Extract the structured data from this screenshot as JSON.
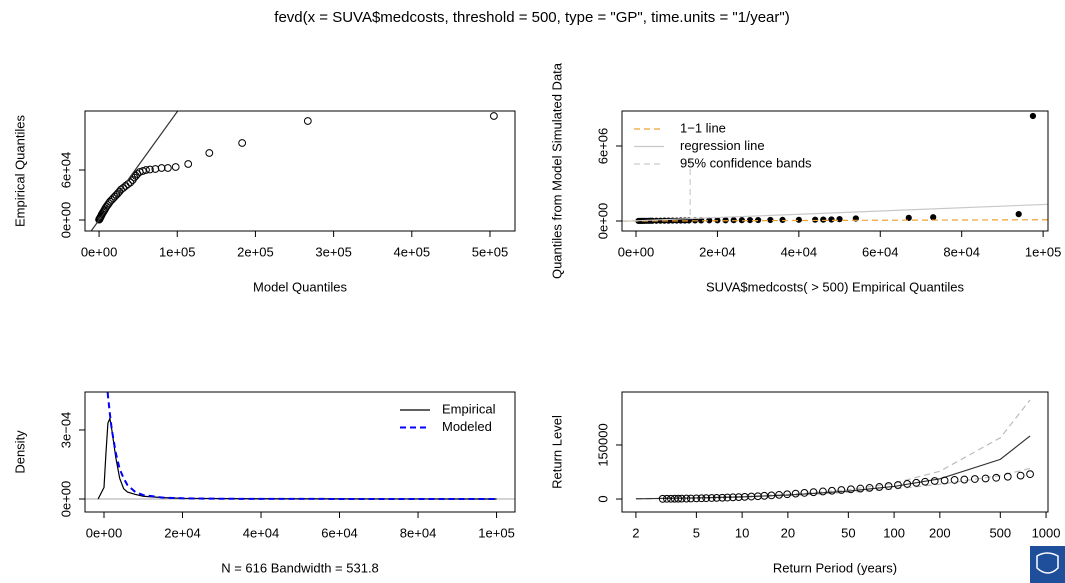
{
  "title": "fevd(x = SUVA$medcosts, threshold = 500, type = \"GP\", time.units = \"1/year\")",
  "chart_data": [
    {
      "type": "scatter",
      "xlabel": "Model Quantiles",
      "ylabel": "Empirical Quantiles",
      "xlim": [
        -18000,
        532000
      ],
      "ylim": [
        -13200,
        130800
      ],
      "xticks": [
        {
          "value": 0,
          "label": "0e+00"
        },
        {
          "value": 100000,
          "label": "1e+05"
        },
        {
          "value": 200000,
          "label": "2e+05"
        },
        {
          "value": 300000,
          "label": "3e+05"
        },
        {
          "value": 400000,
          "label": "4e+05"
        },
        {
          "value": 500000,
          "label": "5e+05"
        }
      ],
      "yticks": [
        {
          "value": 0,
          "label": "0e+00"
        },
        {
          "value": 60000,
          "label": "6e+04"
        }
      ],
      "series": [
        {
          "kind": "points",
          "marker": "open",
          "color": "#000000",
          "x": [
            505000,
            267000,
            183000,
            141000,
            114000,
            98000,
            88000,
            80000,
            72000,
            65000,
            60000,
            56000,
            52000,
            49000,
            47000,
            45000,
            43000,
            40000,
            37000,
            34000,
            31000,
            28000,
            26000,
            24000,
            22000,
            20000,
            18000,
            16000,
            14000,
            12500,
            11000,
            9500,
            8000,
            7000,
            6000,
            5000,
            4000,
            3200,
            2500,
            1800,
            1200,
            700,
            300,
            0
          ],
          "y": [
            124800,
            118800,
            92400,
            80400,
            67200,
            63600,
            62400,
            62400,
            61200,
            60600,
            60000,
            58800,
            57600,
            55200,
            53000,
            51000,
            48000,
            45000,
            43000,
            41000,
            38500,
            36500,
            34000,
            32000,
            30000,
            28000,
            26000,
            24000,
            22000,
            20000,
            18000,
            16000,
            14000,
            12000,
            10500,
            9000,
            7500,
            6000,
            4500,
            3300,
            2200,
            1300,
            700,
            500
          ]
        },
        {
          "kind": "abline",
          "color": "#333333",
          "intercept": 0,
          "slope": 1.3
        }
      ]
    },
    {
      "type": "scatter",
      "xlabel": "SUVA$medcosts( > 500) Empirical Quantiles",
      "ylabel": "Quantiles from Model Simulated Data",
      "xlim": [
        -3440,
        101200
      ],
      "ylim": [
        -800000,
        8800000
      ],
      "legend": "topleft",
      "xticks": [
        {
          "value": 0,
          "label": "0e+00"
        },
        {
          "value": 20000,
          "label": "2e+04"
        },
        {
          "value": 40000,
          "label": "4e+04"
        },
        {
          "value": 60000,
          "label": "6e+04"
        },
        {
          "value": 80000,
          "label": "8e+04"
        },
        {
          "value": 100000,
          "label": "1e+05"
        }
      ],
      "yticks": [
        {
          "value": 0,
          "label": "0e+00"
        },
        {
          "value": 6000000,
          "label": "6e+06"
        }
      ],
      "series": [
        {
          "kind": "points",
          "marker": "filled",
          "color": "#000000",
          "x": [
            600,
            1000,
            1500,
            2000,
            2500,
            3000,
            3500,
            4000,
            5000,
            6000,
            7000,
            8000,
            9000,
            10000,
            11000,
            12000,
            13000,
            14500,
            16000,
            18000,
            20000,
            22000,
            24000,
            26000,
            28000,
            30000,
            33000,
            36000,
            40000,
            44000,
            46000,
            48000,
            50000,
            54000,
            67000,
            73000,
            94000,
            97500
          ],
          "y": [
            5000,
            8000,
            10000,
            12000,
            14000,
            16000,
            18000,
            20000,
            22000,
            25000,
            28000,
            30000,
            33000,
            36000,
            38000,
            40000,
            42000,
            45000,
            48000,
            52000,
            56000,
            60000,
            64000,
            68000,
            72000,
            76000,
            82000,
            88000,
            95000,
            105000,
            110000,
            120000,
            150000,
            200000,
            250000,
            300000,
            550000,
            8400000
          ]
        },
        {
          "kind": "abline",
          "name": "1−1 line",
          "color": "#f0a030",
          "dash": "dashed",
          "intercept": 0,
          "slope": 1
        },
        {
          "kind": "abline",
          "name": "regression line",
          "color": "#c8c8c8",
          "intercept": 20000,
          "slope": 13
        },
        {
          "kind": "line",
          "name": "95% confidence bands",
          "color": "#cccccc",
          "dash": "dashed",
          "x": [
            13300,
            13300
          ],
          "y": [
            480000,
            4880000
          ]
        }
      ]
    },
    {
      "type": "line",
      "xlabel": "N = 616   Bandwidth = 531.8",
      "ylabel": "Density",
      "xlim": [
        -4840,
        104700
      ],
      "ylim": [
        -5.65e-05,
        0.000465
      ],
      "legend": "topright",
      "xticks": [
        {
          "value": 0,
          "label": "0e+00"
        },
        {
          "value": 20000,
          "label": "2e+04"
        },
        {
          "value": 40000,
          "label": "4e+04"
        },
        {
          "value": 60000,
          "label": "6e+04"
        },
        {
          "value": 80000,
          "label": "8e+04"
        },
        {
          "value": 100000,
          "label": "1e+05"
        }
      ],
      "yticks": [
        {
          "value": 0,
          "label": "0e+00"
        },
        {
          "value": 0.0003,
          "label": "3e−04"
        }
      ],
      "series": [
        {
          "kind": "abline",
          "color": "#bbbbbb",
          "intercept": 0,
          "slope": 0
        },
        {
          "kind": "line",
          "name": "Empirical",
          "color": "#000000",
          "x": [
            -1500,
            0,
            500,
            1000,
            1500,
            2000,
            3000,
            4000,
            5000,
            6000,
            8000,
            10000,
            15000,
            20000,
            30000,
            40000,
            60000,
            80000,
            100000
          ],
          "y": [
            0,
            5e-05,
            0.0002,
            0.00033,
            0.00035,
            0.0003,
            0.00018,
            9e-05,
            4.5e-05,
            3e-05,
            2e-05,
            1.2e-05,
            6e-06,
            3e-06,
            2e-06,
            1e-06,
            5e-07,
            2e-07,
            1e-07
          ]
        },
        {
          "kind": "line",
          "name": "Modeled",
          "color": "#0000ff",
          "dash": "dashed",
          "x": [
            -1500,
            0,
            500,
            1000,
            1500,
            2000,
            3000,
            4000,
            5000,
            6000,
            8000,
            10000,
            15000,
            20000,
            30000,
            40000,
            60000,
            80000,
            100000
          ],
          "y": [
            null,
            null,
            0.00055,
            0.00045,
            0.00037,
            0.0003,
            0.0002,
            0.00013,
            9e-05,
            6e-05,
            3e-05,
            1.7e-05,
            6e-06,
            3e-06,
            1e-06,
            5e-07,
            2e-07,
            1e-07,
            5e-08
          ]
        }
      ]
    },
    {
      "type": "line",
      "xlabel": "Return Period (years)",
      "ylabel": "Return Level",
      "xlog": true,
      "xlim": [
        1.62,
        1030
      ],
      "ylim": [
        -36000,
        297000
      ],
      "xticks": [
        2,
        5,
        10,
        20,
        50,
        100,
        200,
        500,
        1000
      ],
      "yticks": [
        0,
        150000
      ],
      "series": [
        {
          "kind": "line",
          "color": "#bbbbbb",
          "dash": "dashed",
          "x": [
            2,
            5,
            10,
            20,
            50,
            100,
            200,
            500,
            785
          ],
          "y": [
            700,
            3300,
            6800,
            13000,
            26000,
            44000,
            77000,
            170000,
            275000
          ]
        },
        {
          "kind": "line",
          "color": "#bbbbbb",
          "dash": "dashed",
          "x": [
            2,
            5,
            10,
            20,
            50,
            100,
            200,
            500,
            785
          ],
          "y": [
            500,
            2700,
            5300,
            9500,
            18500,
            28000,
            41000,
            65000,
            85000
          ]
        },
        {
          "kind": "line",
          "color": "#333333",
          "x": [
            2,
            5,
            10,
            20,
            50,
            100,
            200,
            500,
            785
          ],
          "y": [
            600,
            3000,
            6000,
            11000,
            22000,
            35000,
            56000,
            110000,
            175000
          ]
        },
        {
          "kind": "points",
          "marker": "open",
          "color": "#000000",
          "x": [
            3,
            3.2,
            3.4,
            3.6,
            3.8,
            4,
            4.3,
            4.6,
            5,
            5.4,
            5.8,
            6.3,
            6.8,
            7.4,
            8,
            8.7,
            9.5,
            10.4,
            11.5,
            12.7,
            14,
            15.6,
            17.5,
            19.8,
            22.5,
            25.7,
            29.5,
            34,
            39,
            45,
            52,
            60,
            69,
            80,
            92,
            106,
            122,
            140,
            160,
            185,
            215,
            250,
            290,
            340,
            400,
            470,
            560,
            680,
            785
          ],
          "y": [
            600,
            700,
            800,
            900,
            1000,
            1100,
            1300,
            1500,
            1800,
            2100,
            2400,
            2800,
            3200,
            3600,
            4100,
            4700,
            5300,
            6000,
            6900,
            7800,
            8900,
            10100,
            11600,
            13200,
            15000,
            17000,
            19000,
            21000,
            23000,
            25000,
            27000,
            29000,
            31000,
            33500,
            36000,
            39000,
            42000,
            45000,
            48000,
            50000,
            51500,
            53000,
            54000,
            55500,
            57000,
            59000,
            62000,
            65000,
            69000
          ]
        }
      ]
    }
  ]
}
